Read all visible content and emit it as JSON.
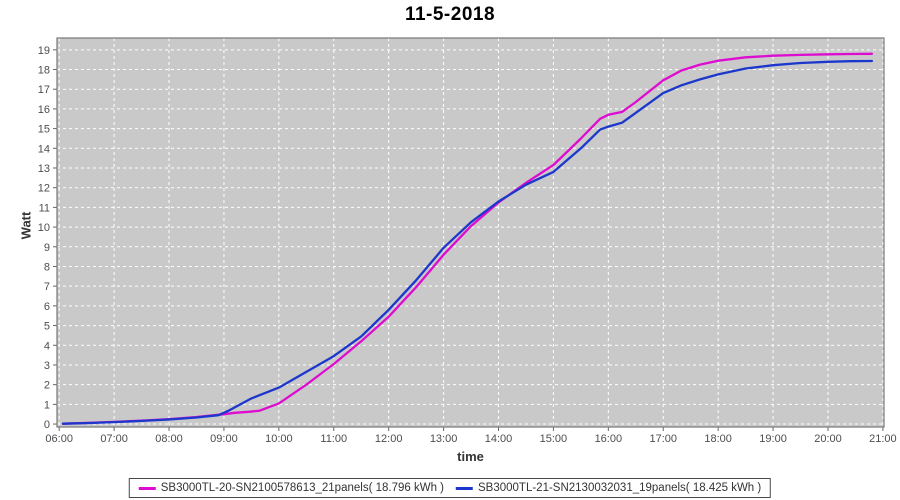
{
  "title": "11-5-2018",
  "colors": {
    "plot_background": "#c9c9c9",
    "plot_border": "#777777",
    "grid": "#ffffff",
    "tick": "#666666",
    "tick_label": "#4d4d4d",
    "series_magenta": "#de0cd0",
    "series_blue": "#1c37cc",
    "legend_border": "#4a4a4a"
  },
  "chart_data": {
    "type": "line",
    "title": "11-5-2018",
    "xlabel": "time",
    "ylabel": "Watt",
    "grid": "white dashed gridlines on gray plot background",
    "legend_position": "bottom-center",
    "xlim": [
      5.96,
      21.02
    ],
    "ylim": [
      -0.15,
      19.6
    ],
    "x_ticks": [
      {
        "label": "06:00",
        "h": 6
      },
      {
        "label": "07:00",
        "h": 7
      },
      {
        "label": "08:00",
        "h": 8
      },
      {
        "label": "09:00",
        "h": 9
      },
      {
        "label": "10:00",
        "h": 10
      },
      {
        "label": "11:00",
        "h": 11
      },
      {
        "label": "12:00",
        "h": 12
      },
      {
        "label": "13:00",
        "h": 13
      },
      {
        "label": "14:00",
        "h": 14
      },
      {
        "label": "15:00",
        "h": 15
      },
      {
        "label": "16:00",
        "h": 16
      },
      {
        "label": "17:00",
        "h": 17
      },
      {
        "label": "18:00",
        "h": 18
      },
      {
        "label": "19:00",
        "h": 19
      },
      {
        "label": "20:00",
        "h": 20
      },
      {
        "label": "21:00",
        "h": 21
      }
    ],
    "y_ticks": [
      0,
      1,
      2,
      3,
      4,
      5,
      6,
      7,
      8,
      9,
      10,
      11,
      12,
      13,
      14,
      15,
      16,
      17,
      18,
      19
    ],
    "series": [
      {
        "name": "SB3000TL-20-SN2100578613_21panels( 18.796 kWh )",
        "color": "#de0cd0",
        "total_kwh": 18.796,
        "points": [
          [
            6.07,
            0.02
          ],
          [
            6.5,
            0.06
          ],
          [
            7.0,
            0.11
          ],
          [
            7.5,
            0.17
          ],
          [
            8.0,
            0.25
          ],
          [
            8.5,
            0.36
          ],
          [
            9.0,
            0.5
          ],
          [
            9.2,
            0.57
          ],
          [
            9.45,
            0.62
          ],
          [
            9.65,
            0.68
          ],
          [
            10.0,
            1.05
          ],
          [
            10.5,
            2.0
          ],
          [
            11.0,
            3.05
          ],
          [
            11.5,
            4.2
          ],
          [
            12.0,
            5.45
          ],
          [
            12.5,
            6.95
          ],
          [
            13.0,
            8.6
          ],
          [
            13.5,
            10.05
          ],
          [
            14.0,
            11.25
          ],
          [
            14.5,
            12.25
          ],
          [
            15.0,
            13.15
          ],
          [
            15.5,
            14.5
          ],
          [
            15.85,
            15.5
          ],
          [
            16.0,
            15.7
          ],
          [
            16.25,
            15.85
          ],
          [
            16.5,
            16.35
          ],
          [
            17.0,
            17.45
          ],
          [
            17.33,
            17.95
          ],
          [
            17.67,
            18.25
          ],
          [
            18.0,
            18.45
          ],
          [
            18.5,
            18.62
          ],
          [
            19.0,
            18.7
          ],
          [
            19.5,
            18.74
          ],
          [
            20.0,
            18.77
          ],
          [
            20.4,
            18.79
          ],
          [
            20.8,
            18.8
          ]
        ]
      },
      {
        "name": "SB3000TL-21-SN2130032031_19panels( 18.425 kWh )",
        "color": "#1c37cc",
        "total_kwh": 18.425,
        "points": [
          [
            6.07,
            0.02
          ],
          [
            6.5,
            0.05
          ],
          [
            7.0,
            0.1
          ],
          [
            7.5,
            0.16
          ],
          [
            8.0,
            0.23
          ],
          [
            8.5,
            0.33
          ],
          [
            8.9,
            0.45
          ],
          [
            9.1,
            0.7
          ],
          [
            9.5,
            1.3
          ],
          [
            10.0,
            1.85
          ],
          [
            10.5,
            2.65
          ],
          [
            11.0,
            3.45
          ],
          [
            11.5,
            4.45
          ],
          [
            12.0,
            5.8
          ],
          [
            12.5,
            7.3
          ],
          [
            13.0,
            8.95
          ],
          [
            13.5,
            10.25
          ],
          [
            14.0,
            11.3
          ],
          [
            14.5,
            12.15
          ],
          [
            15.0,
            12.8
          ],
          [
            15.5,
            14.0
          ],
          [
            15.85,
            14.95
          ],
          [
            16.0,
            15.1
          ],
          [
            16.25,
            15.3
          ],
          [
            16.5,
            15.8
          ],
          [
            17.0,
            16.8
          ],
          [
            17.33,
            17.2
          ],
          [
            17.67,
            17.5
          ],
          [
            18.0,
            17.75
          ],
          [
            18.5,
            18.05
          ],
          [
            19.0,
            18.22
          ],
          [
            19.5,
            18.33
          ],
          [
            20.0,
            18.39
          ],
          [
            20.4,
            18.42
          ],
          [
            20.8,
            18.43
          ]
        ]
      }
    ]
  }
}
